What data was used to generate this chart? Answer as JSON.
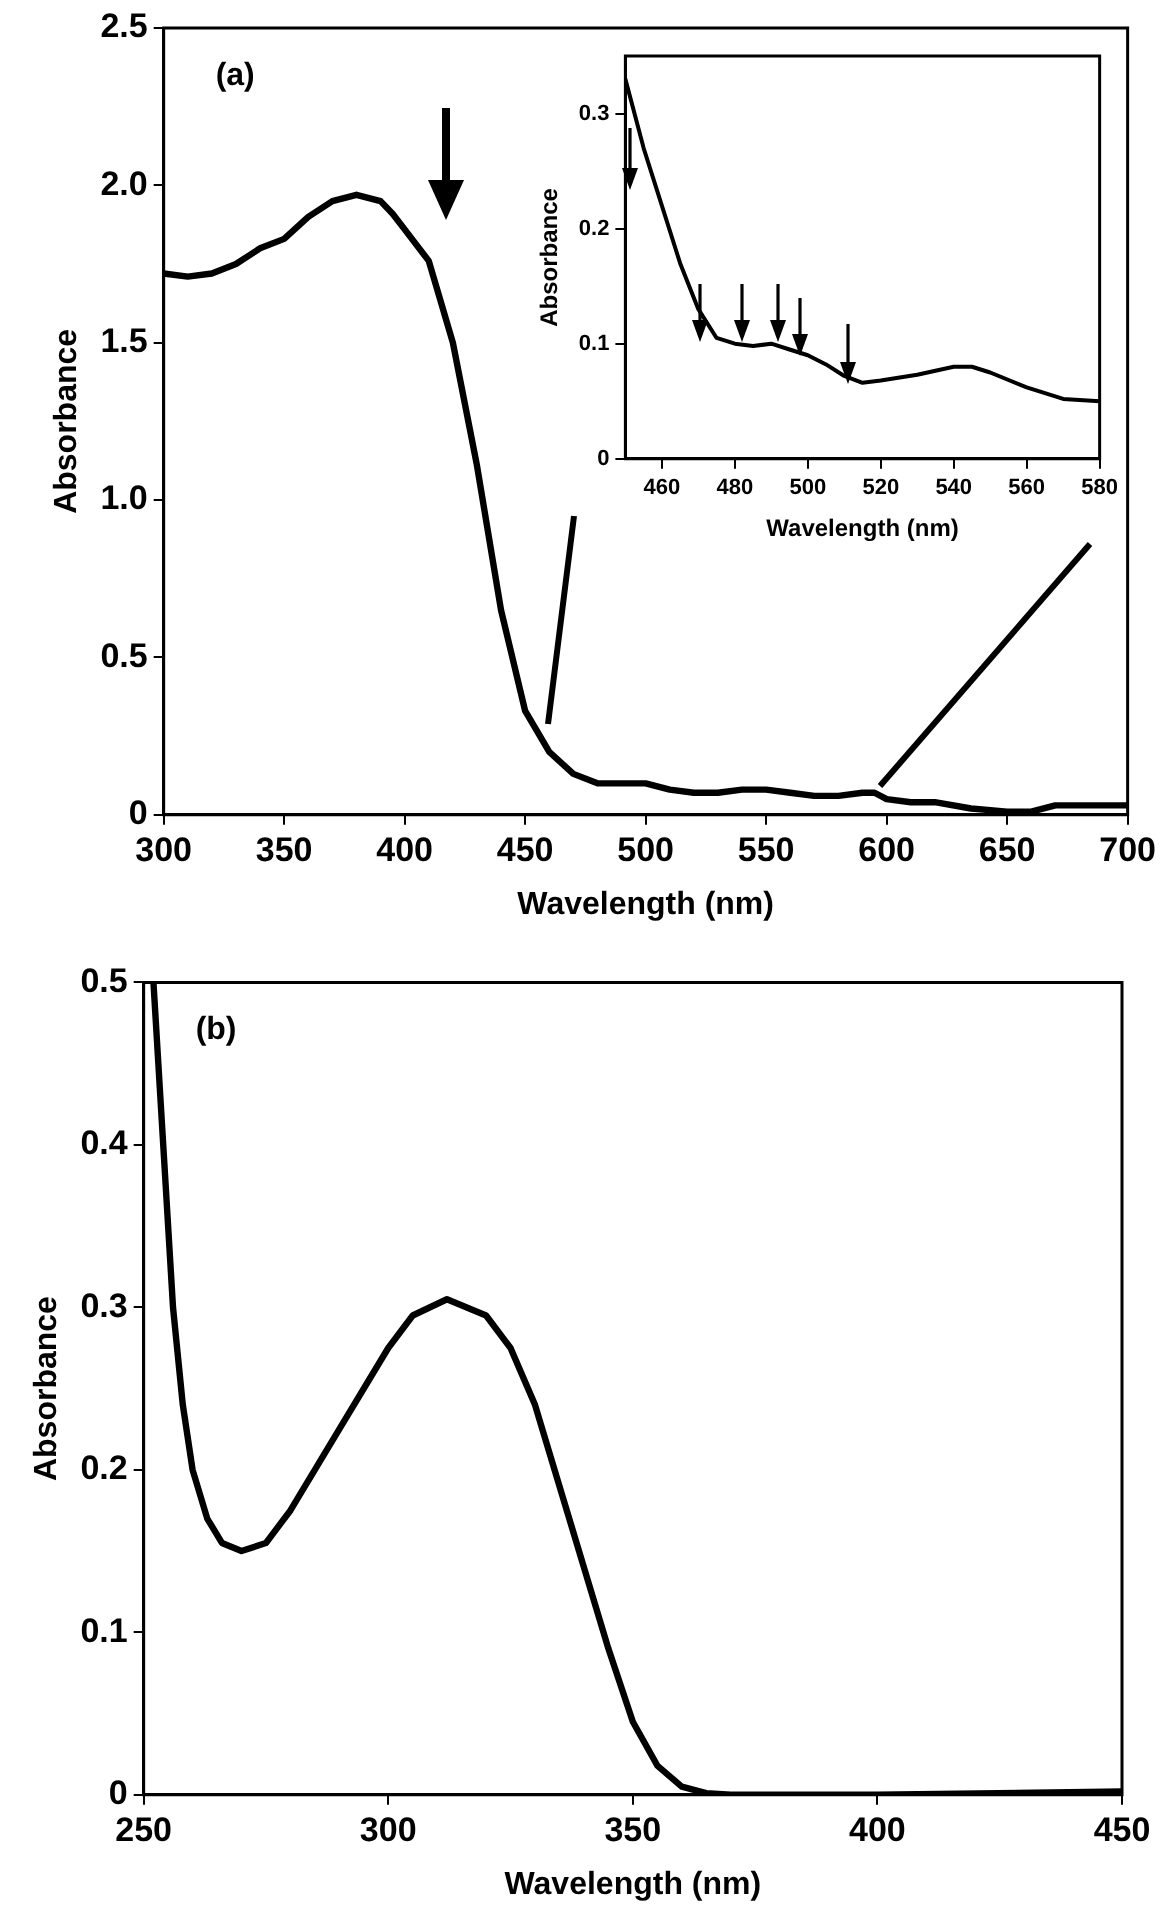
{
  "chart_data": [
    {
      "type": "line",
      "xlabel": "Wavelength (nm)",
      "ylabel": "Absorbance",
      "annotations": [
        "(a)"
      ],
      "xlim": [
        300,
        700
      ],
      "xticks": [
        300,
        350,
        400,
        450,
        500,
        550,
        600,
        650,
        700
      ],
      "ylim": [
        0,
        2.5
      ],
      "yticks": [
        0,
        0.5,
        {
          "value": 1,
          "label": "1.0"
        },
        1.5,
        {
          "value": 2,
          "label": "2.0"
        },
        2.5
      ],
      "x": [
        300,
        310,
        320,
        330,
        340,
        350,
        360,
        370,
        380,
        390,
        395,
        400,
        410,
        420,
        430,
        440,
        450,
        460,
        470,
        480,
        490,
        500,
        510,
        520,
        530,
        540,
        550,
        560,
        570,
        580,
        590,
        595,
        600,
        610,
        620,
        635,
        650,
        660,
        670,
        685,
        700
      ],
      "series": [
        {
          "color": "#000000",
          "values": [
            1.72,
            1.71,
            1.72,
            1.75,
            1.8,
            1.83,
            1.9,
            1.95,
            1.97,
            1.95,
            1.91,
            1.86,
            1.76,
            1.5,
            1.11,
            0.65,
            0.33,
            0.2,
            0.13,
            0.1,
            0.1,
            0.1,
            0.08,
            0.07,
            0.07,
            0.08,
            0.08,
            0.07,
            0.06,
            0.06,
            0.07,
            0.07,
            0.05,
            0.04,
            0.04,
            0.02,
            0.01,
            0.01,
            0.03,
            0.03,
            0.03
          ]
        }
      ]
    },
    {
      "type": "line",
      "xlabel": "Wavelength (nm)",
      "ylabel": "Absorbance",
      "xlim": [
        450,
        580
      ],
      "xticks": [
        460,
        480,
        500,
        520,
        540,
        560,
        580
      ],
      "ylim": [
        0,
        0.35
      ],
      "yticks": [
        0,
        0.1,
        0.2,
        0.3
      ],
      "x": [
        450,
        455,
        460,
        465,
        470,
        475,
        480,
        485,
        490,
        495,
        500,
        505,
        510,
        515,
        520,
        530,
        540,
        545,
        550,
        560,
        570,
        580
      ],
      "series": [
        {
          "color": "#000000",
          "values": [
            0.33,
            0.27,
            0.22,
            0.17,
            0.13,
            0.105,
            0.1,
            0.098,
            0.1,
            0.095,
            0.09,
            0.082,
            0.072,
            0.066,
            0.068,
            0.073,
            0.08,
            0.08,
            0.075,
            0.062,
            0.052,
            0.05
          ]
        }
      ]
    },
    {
      "type": "line",
      "xlabel": "Wavelength (nm)",
      "ylabel": "Absorbance",
      "annotations": [
        "(b)"
      ],
      "xlim": [
        250,
        450
      ],
      "xticks": [
        250,
        300,
        350,
        400,
        450
      ],
      "ylim": [
        0,
        0.5
      ],
      "yticks": [
        0,
        0.1,
        0.2,
        0.3,
        0.4,
        0.5
      ],
      "x": [
        252,
        254,
        256,
        258,
        260,
        263,
        266,
        270,
        275,
        280,
        290,
        300,
        305,
        312,
        320,
        325,
        330,
        335,
        340,
        345,
        350,
        355,
        360,
        365,
        370,
        400,
        450
      ],
      "series": [
        {
          "color": "#000000",
          "values": [
            0.5,
            0.4,
            0.3,
            0.24,
            0.2,
            0.17,
            0.155,
            0.15,
            0.155,
            0.175,
            0.225,
            0.275,
            0.295,
            0.305,
            0.295,
            0.275,
            0.24,
            0.19,
            0.14,
            0.09,
            0.045,
            0.018,
            0.005,
            0.001,
            0,
            0,
            0.002
          ]
        }
      ]
    }
  ]
}
